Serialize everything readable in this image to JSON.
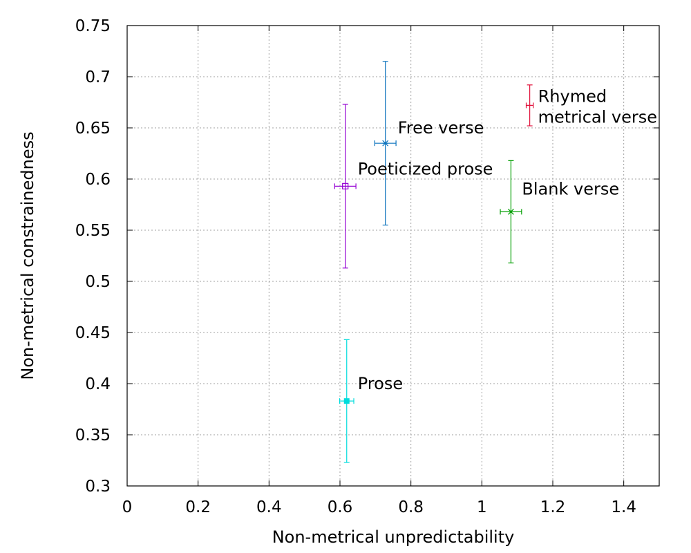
{
  "chart_data": {
    "type": "scatter",
    "title": "",
    "xlabel": "Non-metrical unpredictability",
    "ylabel": "Non-metrical constrainedness",
    "xlim": [
      0,
      1.5
    ],
    "ylim": [
      0.3,
      0.75
    ],
    "grid": true,
    "xticks": [
      {
        "value": 0,
        "label": "0"
      },
      {
        "value": 0.2,
        "label": "0.2"
      },
      {
        "value": 0.4,
        "label": "0.4"
      },
      {
        "value": 0.6,
        "label": "0.6"
      },
      {
        "value": 0.8,
        "label": "0.8"
      },
      {
        "value": 1.0,
        "label": "1"
      },
      {
        "value": 1.2,
        "label": "1.2"
      },
      {
        "value": 1.4,
        "label": "1.4"
      }
    ],
    "yticks": [
      {
        "value": 0.3,
        "label": "0.3"
      },
      {
        "value": 0.35,
        "label": "0.35"
      },
      {
        "value": 0.4,
        "label": "0.4"
      },
      {
        "value": 0.45,
        "label": "0.45"
      },
      {
        "value": 0.5,
        "label": "0.5"
      },
      {
        "value": 0.55,
        "label": "0.55"
      },
      {
        "value": 0.6,
        "label": "0.6"
      },
      {
        "value": 0.65,
        "label": "0.65"
      },
      {
        "value": 0.7,
        "label": "0.7"
      },
      {
        "value": 0.75,
        "label": "0.75"
      }
    ],
    "series": [
      {
        "name": "Rhymed metrical verse",
        "label_lines": [
          "Rhymed",
          "metrical verse"
        ],
        "x": 1.135,
        "y": 0.672,
        "x_err": 0.01,
        "y_err": 0.02,
        "color": "#e0103a",
        "marker": "plus"
      },
      {
        "name": "Free verse",
        "label_lines": [
          "Free verse"
        ],
        "x": 0.728,
        "y": 0.635,
        "x_err": 0.03,
        "y_err": 0.08,
        "color": "#0a72bd",
        "marker": "star"
      },
      {
        "name": "Poeticized prose",
        "label_lines": [
          "Poeticized prose"
        ],
        "x": 0.615,
        "y": 0.593,
        "x_err": 0.03,
        "y_err": 0.08,
        "color": "#9400d3",
        "marker": "open-square"
      },
      {
        "name": "Blank verse",
        "label_lines": [
          "Blank verse"
        ],
        "x": 1.082,
        "y": 0.568,
        "x_err": 0.03,
        "y_err": 0.05,
        "color": "#009e00",
        "marker": "cross"
      },
      {
        "name": "Prose",
        "label_lines": [
          "Prose"
        ],
        "x": 0.619,
        "y": 0.383,
        "x_err": 0.02,
        "y_err": 0.06,
        "color": "#00dcdc",
        "marker": "filled-square"
      }
    ]
  }
}
